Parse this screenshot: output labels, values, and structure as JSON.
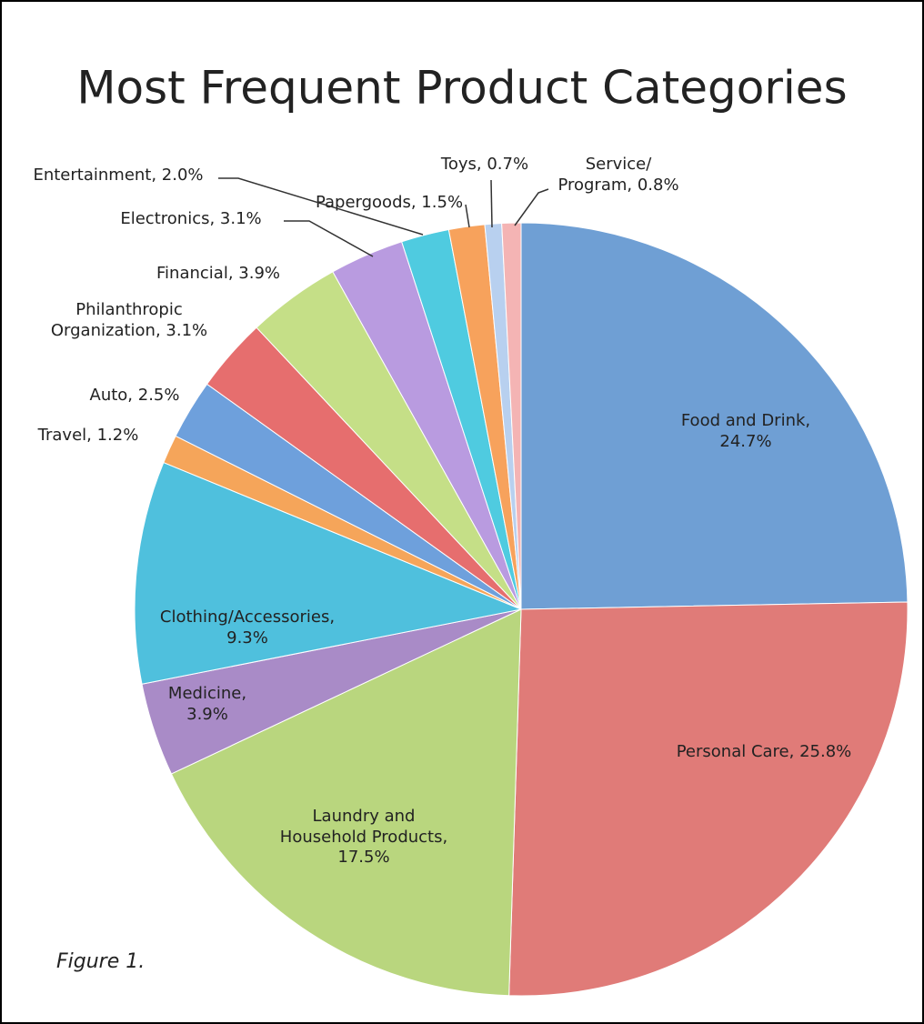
{
  "chart_data": {
    "type": "pie",
    "title": "Most Frequent Product Categories",
    "values": [
      24.7,
      25.8,
      17.5,
      3.9,
      9.3,
      1.2,
      2.5,
      3.1,
      3.9,
      3.1,
      2.0,
      1.5,
      0.7,
      0.8
    ],
    "value_labels": [
      "Food and Drink, 24.7%",
      "Personal Care, 25.8%",
      "Laundry and Household Products, 17.5%",
      "Medicine, 3.9%",
      "Clothing/Accessories, 9.3%",
      "Travel, 1.2%",
      "Auto, 2.5%",
      "Philanthropic Organization, 3.1%",
      "Financial, 3.9%",
      "Electronics, 3.1%",
      "Entertainment, 2.0%",
      "Papergoods, 1.5%",
      "Toys, 0.7%",
      "Service/ Program, 0.8%"
    ],
    "colors": [
      "#6f9fd4",
      "#e07b78",
      "#b9d67e",
      "#a98bc7",
      "#4fc0dd",
      "#f5a55a",
      "#6ea0dc",
      "#e66e6e",
      "#c5df87",
      "#b99be0",
      "#4fcbe0",
      "#f7a25c",
      "#b8d0ef",
      "#f4b4b4"
    ],
    "caption": "Figure 1."
  }
}
